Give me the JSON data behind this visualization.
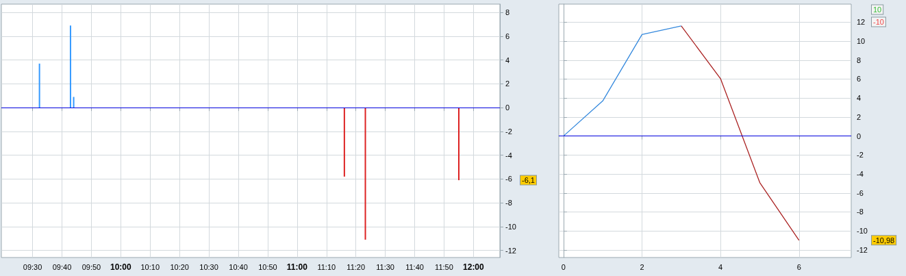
{
  "chart_data": [
    {
      "type": "bar",
      "x": [
        9.539,
        9.715,
        9.733,
        11.268,
        11.387,
        11.917
      ],
      "values": [
        3.7,
        6.9,
        0.9,
        -5.8,
        -11.1,
        -6.1
      ],
      "colors": [
        "#3399ff",
        "#3399ff",
        "#3399ff",
        "#dd2222",
        "#dd2222",
        "#dd2222"
      ],
      "xlim": [
        9.323,
        12.15
      ],
      "xticks": [
        {
          "value": 9.5,
          "label": "09:30"
        },
        {
          "value": 9.6667,
          "label": "09:40"
        },
        {
          "value": 9.8333,
          "label": "09:50"
        },
        {
          "value": 10,
          "label": "10:00"
        },
        {
          "value": 10.1667,
          "label": "10:10"
        },
        {
          "value": 10.3333,
          "label": "10:20"
        },
        {
          "value": 10.5,
          "label": "10:30"
        },
        {
          "value": 10.6667,
          "label": "10:40"
        },
        {
          "value": 10.8333,
          "label": "10:50"
        },
        {
          "value": 11,
          "label": "11:00"
        },
        {
          "value": 11.1667,
          "label": "11:10"
        },
        {
          "value": 11.3333,
          "label": "11:20"
        },
        {
          "value": 11.5,
          "label": "11:30"
        },
        {
          "value": 11.6667,
          "label": "11:40"
        },
        {
          "value": 11.8333,
          "label": "11:50"
        },
        {
          "value": 12,
          "label": "12:00"
        }
      ],
      "ylim": [
        -12.6,
        8.7
      ],
      "yticks": [
        -12,
        -10,
        -8,
        -6,
        -4,
        -2,
        0,
        2,
        4,
        6,
        8
      ],
      "grid": true,
      "ref_lines": [
        {
          "axis": "y",
          "value": 0,
          "color": "#0000dd"
        }
      ],
      "annotations": [
        "-6,1"
      ]
    },
    {
      "type": "line",
      "x": [
        0,
        1,
        2,
        3,
        4,
        5,
        6
      ],
      "marker": "none",
      "grid": true,
      "series": [
        {
          "color": "#3388dd",
          "values": [
            0,
            3.7,
            10.7,
            11.6,
            null,
            null,
            null
          ]
        },
        {
          "color": "#aa2222",
          "values": [
            null,
            null,
            null,
            11.6,
            6.05,
            -4.9,
            -10.98
          ]
        }
      ],
      "xlim": [
        -0.12,
        7.33
      ],
      "xticks": [
        0,
        2,
        4,
        6
      ],
      "ylim": [
        -12.8,
        13.9
      ],
      "yticks": [
        -12,
        -10,
        -8,
        -6,
        -4,
        -2,
        0,
        2,
        4,
        6,
        8,
        10,
        12
      ],
      "ref_lines": [
        {
          "axis": "y",
          "value": 0,
          "color": "#0000dd"
        }
      ],
      "annotations": [
        "10",
        "-10",
        "-10,98"
      ]
    }
  ]
}
